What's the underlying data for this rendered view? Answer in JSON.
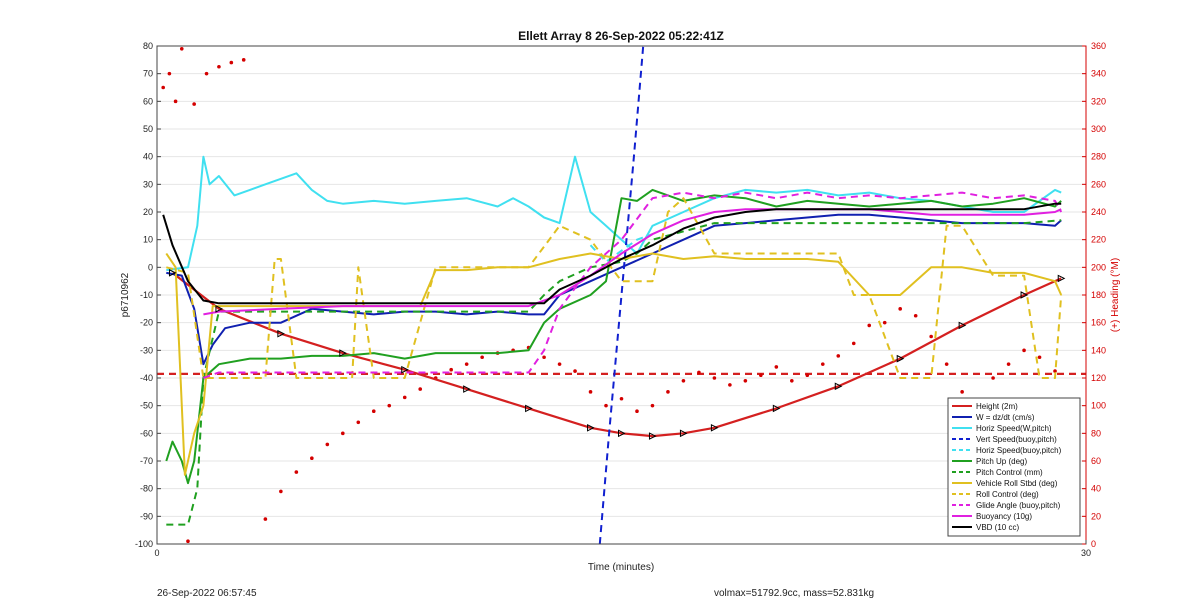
{
  "chart_data": {
    "type": "line",
    "title": "Ellett Array 8 26-Sep-2022 05:22:41Z",
    "xlabel": "Time (minutes)",
    "ylabel_left": "p6710962",
    "ylabel_right": "(+) Heading (°M)",
    "xlim": [
      0,
      30
    ],
    "ylim_left": [
      -100,
      80
    ],
    "ylim_right": [
      0,
      360
    ],
    "x_ticks": [
      "0",
      "30"
    ],
    "y_left_ticks": [
      "80",
      "70",
      "60",
      "50",
      "40",
      "30",
      "20",
      "10",
      "0",
      "-10",
      "-20",
      "-30",
      "-40",
      "-50",
      "-60",
      "-70",
      "-80",
      "-90",
      "-100"
    ],
    "y_right_ticks": [
      "360",
      "340",
      "320",
      "300",
      "280",
      "260",
      "240",
      "220",
      "200",
      "180",
      "160",
      "140",
      "120",
      "100",
      "80",
      "60",
      "40",
      "20",
      "0"
    ],
    "grid": true,
    "legend_position": "bottom-right",
    "colors": {
      "axis_left": "#333333",
      "axis_right": "#d40000",
      "height": "#d42020",
      "w": "#1020b0",
      "horiz_speed": "#40e0f0",
      "vert_speed_buoy": "#1020d0",
      "pitch": "#20a020",
      "roll": "#e0c020",
      "glide": "#e020e0",
      "buoyancy": "#e020e0",
      "vbd": "#000000",
      "heading": "#d40000"
    },
    "series": [
      {
        "name": "Height (2m)",
        "style": "solid",
        "color_key": "height",
        "x": [
          0.5,
          2,
          4,
          6,
          8,
          10,
          12,
          14,
          15,
          16,
          17,
          18,
          20,
          22,
          24,
          26,
          28,
          29.2
        ],
        "y": [
          -2,
          -15,
          -24,
          -31,
          -37,
          -44,
          -51,
          -58,
          -60,
          -61,
          -60,
          -58,
          -51,
          -43,
          -33,
          -21,
          -10,
          -4
        ]
      },
      {
        "name": "W = dz/dt (cm/s)",
        "style": "solid",
        "color_key": "w",
        "x": [
          0.3,
          0.8,
          1.2,
          1.5,
          1.8,
          2.2,
          3,
          4,
          5,
          6,
          7,
          8,
          9,
          10,
          11,
          12,
          12.5,
          13,
          14,
          15,
          16,
          17,
          18,
          19,
          20,
          21,
          22,
          23,
          24,
          25,
          26,
          27,
          28,
          29,
          29.2
        ],
        "y": [
          -2,
          -3,
          -15,
          -35,
          -28,
          -22,
          -20,
          -20,
          -15,
          -16,
          -17,
          -16,
          -16,
          -17,
          -16,
          -17,
          -17,
          -10,
          -5,
          0,
          5,
          10,
          15,
          16,
          17,
          18,
          19,
          19,
          18,
          17,
          16,
          16,
          16,
          15,
          17
        ]
      },
      {
        "name": "Horiz Speed(W,pitch)",
        "style": "solid",
        "color_key": "horiz_speed",
        "x": [
          0.3,
          1,
          1.3,
          1.5,
          1.7,
          2,
          2.5,
          3,
          3.5,
          4,
          4.5,
          5,
          5.5,
          6,
          7,
          8,
          9,
          10,
          11,
          11.5,
          12,
          12.5,
          13,
          13.5,
          14,
          14.5,
          15,
          15.5,
          16,
          17,
          18,
          19,
          20,
          21,
          22,
          23,
          24,
          25,
          26,
          27,
          28,
          29,
          29.2
        ],
        "y": [
          -1,
          0,
          15,
          40,
          30,
          33,
          26,
          28,
          30,
          32,
          34,
          28,
          24,
          23,
          24,
          23,
          24,
          25,
          22,
          25,
          22,
          18,
          16,
          40,
          20,
          15,
          10,
          5,
          15,
          20,
          25,
          28,
          27,
          28,
          26,
          27,
          25,
          24,
          22,
          20,
          20,
          28,
          27
        ]
      },
      {
        "name": "Vert Speed(buoy,pitch)",
        "style": "dashed",
        "color_key": "vert_speed_buoy",
        "x": [
          14.3,
          14.6,
          15,
          15.4,
          15.7
        ],
        "y": [
          -100,
          -60,
          -10,
          40,
          80
        ]
      },
      {
        "name": "Horiz Speed(buoy,pitch)",
        "style": "dashed",
        "color_key": "horiz_speed",
        "x": [
          14,
          14.5,
          15,
          15.5,
          16
        ],
        "y": [
          8,
          2,
          6,
          10,
          12
        ]
      },
      {
        "name": "Pitch Up (deg)",
        "style": "solid",
        "color_key": "pitch",
        "x": [
          0.3,
          0.5,
          0.8,
          1,
          1.2,
          1.5,
          2,
          3,
          4,
          5,
          6,
          7,
          8,
          9,
          10,
          11,
          12,
          12.5,
          13,
          14,
          14.5,
          15,
          15.5,
          16,
          17,
          18,
          19,
          20,
          21,
          22,
          23,
          24,
          25,
          26,
          27,
          28,
          29,
          29.2
        ],
        "y": [
          -70,
          -63,
          -70,
          -78,
          -70,
          -40,
          -35,
          -33,
          -33,
          -32,
          -32,
          -31,
          -33,
          -31,
          -31,
          -31,
          -30,
          -20,
          -15,
          -10,
          -5,
          25,
          24,
          28,
          24,
          26,
          25,
          22,
          24,
          23,
          22,
          23,
          24,
          22,
          23,
          25,
          22,
          24
        ]
      },
      {
        "name": "Pitch Control (mm)",
        "style": "dashed",
        "color_key": "pitch",
        "x": [
          0.3,
          1,
          1.3,
          1.5,
          2,
          4,
          6,
          8,
          10,
          12,
          12.5,
          13,
          14,
          15,
          15.5,
          16,
          18,
          20,
          22,
          24,
          26,
          28,
          29.2
        ],
        "y": [
          -93,
          -93,
          -80,
          -40,
          -16,
          -16,
          -16,
          -16,
          -16,
          -16,
          -10,
          -5,
          0,
          2,
          5,
          10,
          16,
          16,
          16,
          16,
          16,
          16,
          17
        ]
      },
      {
        "name": "Vehicle Roll Stbd (deg)",
        "style": "solid",
        "color_key": "roll",
        "x": [
          0.3,
          0.6,
          0.9,
          1.2,
          1.5,
          1.8,
          2,
          3,
          3.5,
          4,
          4.5,
          5,
          5.5,
          6,
          7,
          7.5,
          8,
          8.5,
          9,
          10,
          11,
          12,
          13,
          14,
          15,
          16,
          17,
          18,
          19,
          20,
          21,
          22,
          23,
          24,
          25,
          26,
          27,
          28,
          29,
          29.2
        ],
        "y": [
          5,
          0,
          -75,
          -60,
          -50,
          -14,
          -14,
          -14,
          -14,
          -14,
          -14,
          -14,
          -14,
          -14,
          -14,
          -14,
          -14,
          -14,
          -1,
          -1,
          0,
          0,
          3,
          5,
          3,
          5,
          3,
          4,
          3,
          3,
          3,
          2,
          -10,
          -10,
          0,
          0,
          -2,
          -2,
          -5,
          -10
        ]
      },
      {
        "name": "Roll Control (deg)",
        "style": "dashed",
        "color_key": "roll",
        "x": [
          0.3,
          1,
          1.5,
          2,
          3,
          3.5,
          3.8,
          4,
          4.5,
          5,
          6,
          6.3,
          6.5,
          7,
          8,
          9,
          10,
          12,
          13,
          14,
          15,
          16,
          16.5,
          17,
          18,
          19,
          20,
          21,
          22,
          22.5,
          23,
          24,
          25,
          25.5,
          26,
          27,
          28,
          28.5,
          29,
          29.2
        ],
        "y": [
          0,
          -2,
          -40,
          -40,
          -40,
          -40,
          3,
          3,
          -40,
          -40,
          -40,
          -40,
          0,
          -40,
          -40,
          0,
          0,
          0,
          15,
          10,
          -5,
          -5,
          20,
          25,
          5,
          5,
          5,
          5,
          5,
          -10,
          -10,
          -40,
          -40,
          15,
          15,
          -3,
          -3,
          -40,
          -40,
          -10
        ]
      },
      {
        "name": "Glide Angle (buoy,pitch)",
        "style": "dashed",
        "color_key": "glide",
        "x": [
          1.5,
          2,
          4,
          6,
          8,
          10,
          12,
          12.5,
          13,
          14,
          15,
          16,
          17,
          18,
          19,
          20,
          21,
          22,
          23,
          24,
          25,
          26,
          27,
          28,
          29,
          29.2
        ],
        "y": [
          -40,
          -38,
          -38,
          -38,
          -38,
          -38,
          -38,
          -30,
          -15,
          0,
          10,
          25,
          27,
          25,
          27,
          25,
          27,
          25,
          26,
          25,
          26,
          27,
          25,
          26,
          24,
          20
        ]
      },
      {
        "name": "Buoyancy (10g)",
        "style": "solid",
        "color_key": "buoyancy",
        "x": [
          1.5,
          2,
          4,
          6,
          8,
          10,
          12,
          13,
          14,
          15,
          16,
          17,
          18,
          19,
          20,
          21,
          22,
          23,
          24,
          25,
          26,
          27,
          28,
          29,
          29.2
        ],
        "y": [
          -17,
          -16,
          -15,
          -14,
          -14,
          -14,
          -14,
          -10,
          -3,
          5,
          12,
          17,
          20,
          21,
          21,
          21,
          21,
          21,
          20,
          19,
          19,
          19,
          19,
          20,
          21
        ]
      },
      {
        "name": "VBD (10 cc)",
        "style": "solid",
        "color_key": "vbd",
        "x": [
          0.2,
          0.5,
          1,
          1.5,
          2,
          3,
          4,
          6,
          8,
          10,
          12,
          12.5,
          13,
          14,
          15,
          16,
          17,
          18,
          19,
          20,
          21,
          22,
          23,
          24,
          25,
          26,
          27,
          28,
          29,
          29.2
        ],
        "y": [
          19,
          8,
          -5,
          -12,
          -13,
          -13,
          -13,
          -13,
          -13,
          -13,
          -13,
          -13,
          -8,
          -3,
          3,
          8,
          14,
          18,
          20,
          21,
          21,
          21,
          21,
          21,
          21,
          21,
          21,
          21,
          23,
          23
        ]
      }
    ],
    "reference_lines": [
      {
        "axis": "y",
        "value": -38.5,
        "color_key": "height",
        "style": "dashed"
      }
    ],
    "heading_points_right_axis": {
      "color_key": "heading",
      "x": [
        0.2,
        0.4,
        0.6,
        0.8,
        1.2,
        1.6,
        2,
        2.4,
        2.8,
        1,
        3.5,
        4,
        4.5,
        5,
        5.5,
        6,
        6.5,
        7,
        7.5,
        8,
        8.5,
        9,
        9.5,
        10,
        10.5,
        11,
        11.5,
        12,
        12.5,
        13,
        13.5,
        14,
        14.5,
        15,
        15.5,
        16,
        16.5,
        17,
        17.5,
        18,
        18.5,
        19,
        19.5,
        20,
        20.5,
        21,
        21.5,
        22,
        22.5,
        23,
        23.5,
        24,
        24.5,
        25,
        25.5,
        26,
        26.5,
        27,
        27.5,
        28,
        28.5,
        29
      ],
      "y": [
        330,
        340,
        320,
        358,
        318,
        340,
        345,
        348,
        350,
        2,
        18,
        38,
        52,
        62,
        72,
        80,
        88,
        96,
        100,
        106,
        112,
        120,
        126,
        130,
        135,
        138,
        140,
        142,
        135,
        130,
        125,
        110,
        100,
        105,
        96,
        100,
        110,
        118,
        124,
        120,
        115,
        118,
        122,
        128,
        118,
        122,
        130,
        136,
        145,
        158,
        160,
        170,
        165,
        150,
        130,
        110,
        100,
        120,
        130,
        140,
        135,
        125
      ]
    },
    "annotations": [
      {
        "text": "26-Sep-2022 06:57:45",
        "position": "bottom-left"
      },
      {
        "text": "volmax=51792.9cc, mass=52.831kg",
        "position": "bottom-center"
      }
    ]
  }
}
